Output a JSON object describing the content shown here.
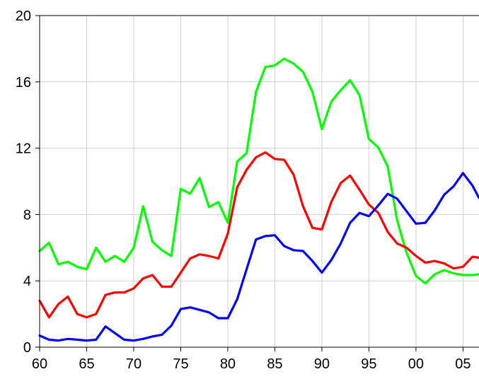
{
  "chart_data": {
    "type": "line",
    "title": "",
    "xlabel": "",
    "ylabel": "",
    "xlim": [
      1960,
      2006.7
    ],
    "ylim": [
      0,
      20
    ],
    "grid": true,
    "x_ticks": [
      {
        "value": 1960,
        "label": "60"
      },
      {
        "value": 1965,
        "label": "65"
      },
      {
        "value": 1970,
        "label": "70"
      },
      {
        "value": 1975,
        "label": "75"
      },
      {
        "value": 1980,
        "label": "80"
      },
      {
        "value": 1985,
        "label": "85"
      },
      {
        "value": 1990,
        "label": "90"
      },
      {
        "value": 1995,
        "label": "95"
      },
      {
        "value": 2000,
        "label": "00"
      },
      {
        "value": 2005,
        "label": "05"
      }
    ],
    "y_ticks": [
      {
        "value": 0,
        "label": "0"
      },
      {
        "value": 4,
        "label": "4"
      },
      {
        "value": 8,
        "label": "8"
      },
      {
        "value": 12,
        "label": "12"
      },
      {
        "value": 16,
        "label": "16"
      },
      {
        "value": 20,
        "label": "20"
      }
    ],
    "x": [
      1960,
      1961,
      1962,
      1963,
      1964,
      1965,
      1966,
      1967,
      1968,
      1969,
      1970,
      1971,
      1972,
      1973,
      1974,
      1975,
      1976,
      1977,
      1978,
      1979,
      1980,
      1981,
      1982,
      1983,
      1984,
      1985,
      1986,
      1987,
      1988,
      1989,
      1990,
      1991,
      1992,
      1993,
      1994,
      1995,
      1996,
      1997,
      1998,
      1999,
      2000,
      2001,
      2002,
      2003,
      2004,
      2005,
      2006,
      2006.7
    ],
    "series": [
      {
        "color": "#00ff00",
        "values": [
          5.8,
          6.3,
          5.0,
          5.15,
          4.85,
          4.7,
          6.0,
          5.15,
          5.5,
          5.15,
          6.0,
          8.5,
          6.35,
          5.85,
          5.5,
          9.55,
          9.25,
          10.2,
          8.45,
          8.75,
          7.5,
          11.2,
          11.7,
          15.4,
          16.9,
          17.0,
          17.4,
          17.1,
          16.6,
          15.4,
          13.15,
          14.8,
          15.5,
          16.1,
          15.2,
          12.55,
          12.05,
          10.9,
          7.65,
          5.7,
          4.3,
          3.85,
          4.4,
          4.65,
          4.45,
          4.35,
          4.35,
          4.4
        ]
      },
      {
        "color": "#ff0000",
        "values": [
          2.8,
          1.8,
          2.6,
          3.05,
          2.0,
          1.8,
          2.0,
          3.15,
          3.3,
          3.3,
          3.55,
          4.15,
          4.35,
          3.65,
          3.65,
          4.5,
          5.35,
          5.6,
          5.5,
          5.35,
          6.85,
          9.65,
          10.7,
          11.45,
          11.75,
          11.35,
          11.3,
          10.4,
          8.5,
          7.2,
          7.1,
          8.75,
          9.9,
          10.35,
          9.5,
          8.6,
          8.1,
          6.95,
          6.25,
          6.0,
          5.5,
          5.1,
          5.2,
          5.05,
          4.75,
          4.85,
          5.45,
          5.4
        ]
      },
      {
        "color": "#0000ff",
        "values": [
          0.7,
          0.45,
          0.4,
          0.5,
          0.45,
          0.4,
          0.45,
          1.25,
          0.85,
          0.45,
          0.4,
          0.5,
          0.65,
          0.75,
          1.3,
          2.3,
          2.4,
          2.25,
          2.1,
          1.75,
          1.75,
          2.9,
          4.7,
          6.5,
          6.7,
          6.75,
          6.1,
          5.85,
          5.8,
          5.2,
          4.5,
          5.25,
          6.25,
          7.5,
          8.1,
          7.9,
          8.55,
          9.25,
          8.95,
          8.2,
          7.45,
          7.5,
          8.25,
          9.2,
          9.7,
          10.5,
          9.75,
          9.0
        ]
      }
    ]
  }
}
